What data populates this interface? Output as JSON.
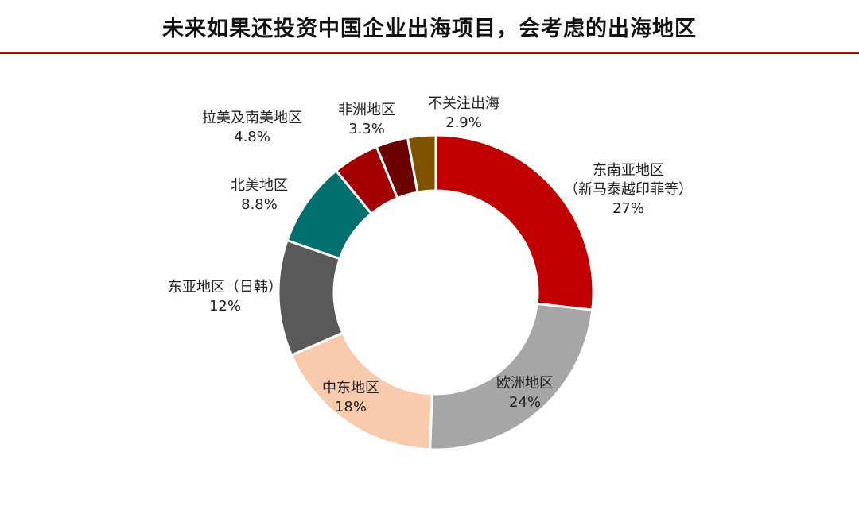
{
  "title": "未来如果还投资中国企业出海项目，会考虑的出海地区",
  "chart_data": {
    "type": "pie",
    "donut": true,
    "title": "未来如果还投资中国企业出海项目，会考虑的出海地区",
    "slices": [
      {
        "label_lines": [
          "东南亚地区",
          "（新马泰越印菲等）"
        ],
        "value_label": "27%",
        "value": 27,
        "color": "#c00000"
      },
      {
        "label_lines": [
          "欧洲地区"
        ],
        "value_label": "24%",
        "value": 24,
        "color": "#a6a6a6"
      },
      {
        "label_lines": [
          "中东地区"
        ],
        "value_label": "18%",
        "value": 18,
        "color": "#f8cbad"
      },
      {
        "label_lines": [
          "东亚地区（日韩）"
        ],
        "value_label": "12%",
        "value": 12,
        "color": "#595959"
      },
      {
        "label_lines": [
          "北美地区"
        ],
        "value_label": "8.8%",
        "value": 8.8,
        "color": "#00706f"
      },
      {
        "label_lines": [
          "拉美及南美地区"
        ],
        "value_label": "4.8%",
        "value": 4.8,
        "color": "#a50000"
      },
      {
        "label_lines": [
          "非洲地区"
        ],
        "value_label": "3.3%",
        "value": 3.3,
        "color": "#6b0000"
      },
      {
        "label_lines": [
          "不关注出海"
        ],
        "value_label": "2.9%",
        "value": 2.9,
        "color": "#7f5200"
      }
    ]
  }
}
